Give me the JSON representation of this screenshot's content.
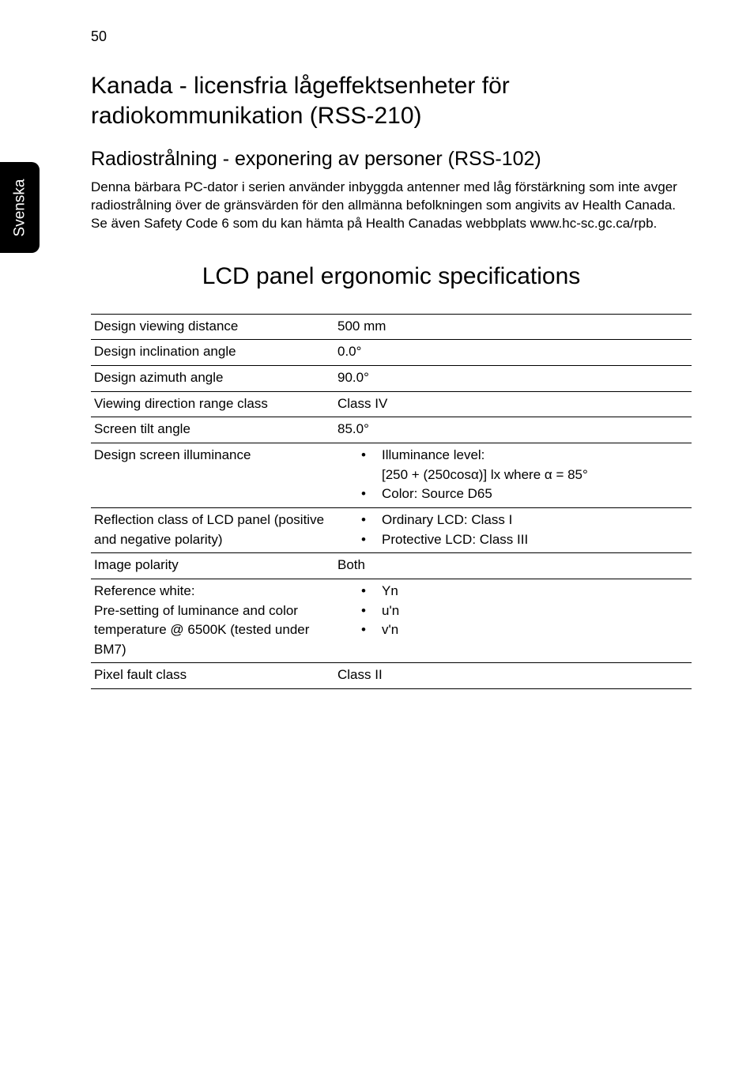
{
  "page_number": "50",
  "side_tab": "Svenska",
  "title1": "Kanada - licensfria lågeffektsenheter för radiokommunikation (RSS-210)",
  "subtitle1": "Radiostrålning - exponering av personer (RSS-102)",
  "paragraph1": "Denna bärbara PC-dator i serien använder inbyggda antenner med låg förstärkning som inte avger radiostrålning över de gränsvärden för den allmänna befolkningen som angivits av Health Canada. Se även Safety Code 6 som du kan hämta på Health Canadas webbplats www.hc-sc.gc.ca/rpb.",
  "title2": "LCD panel ergonomic specifications",
  "spec_table": {
    "rows": [
      {
        "label": "Design viewing distance",
        "value_type": "plain",
        "value": "500 mm"
      },
      {
        "label": "Design inclination angle",
        "value_type": "plain",
        "value": "0.0°"
      },
      {
        "label": "Design azimuth angle",
        "value_type": "plain",
        "value": "90.0°"
      },
      {
        "label": "Viewing direction range class",
        "value_type": "plain",
        "value": "Class IV"
      },
      {
        "label": "Screen tilt angle",
        "value_type": "plain",
        "value": "85.0°"
      },
      {
        "label": "Design screen illuminance",
        "value_type": "bullets",
        "bullets": [
          "Illuminance level:\n[250 + (250cosα)] lx where α = 85°",
          "Color: Source D65"
        ]
      },
      {
        "label": "Reflection class of LCD panel (positive and negative polarity)",
        "value_type": "bullets",
        "bullets": [
          "Ordinary LCD: Class I",
          "Protective LCD: Class III"
        ]
      },
      {
        "label": "Image polarity",
        "value_type": "plain",
        "value": "Both"
      },
      {
        "label": "Reference white:\nPre-setting of luminance and color temperature @ 6500K (tested under BM7)",
        "value_type": "bullets",
        "bullets": [
          "Yn",
          "u'n",
          "v'n"
        ]
      },
      {
        "label": "Pixel fault class",
        "value_type": "plain",
        "value": "Class II"
      }
    ]
  }
}
